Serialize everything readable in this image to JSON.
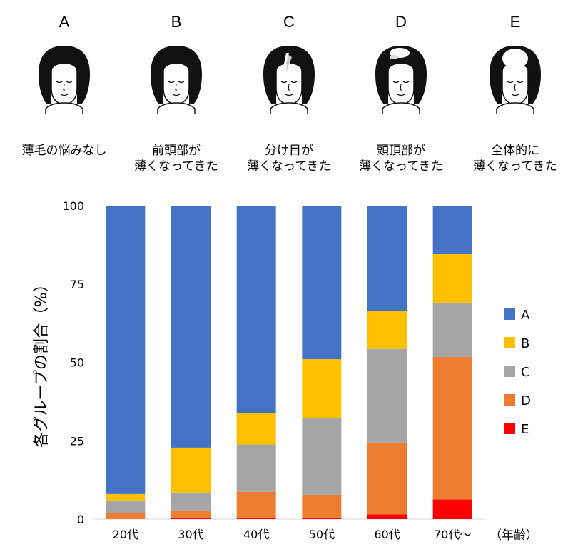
{
  "groups": [
    {
      "letter": "A",
      "caption": [
        "薄毛の悩みなし"
      ],
      "thinning": "none"
    },
    {
      "letter": "B",
      "caption": [
        "前頭部が",
        "薄くなってきた"
      ],
      "thinning": "front"
    },
    {
      "letter": "C",
      "caption": [
        "分け目が",
        "薄くなってきた"
      ],
      "thinning": "part"
    },
    {
      "letter": "D",
      "caption": [
        "頭頂部が",
        "薄くなってきた"
      ],
      "thinning": "crown"
    },
    {
      "letter": "E",
      "caption": [
        "全体的に",
        "薄くなってきた"
      ],
      "thinning": "overall"
    }
  ],
  "colors": {
    "A": "#4472C4",
    "B": "#FFC000",
    "C": "#A5A5A5",
    "D": "#ED7D31",
    "E": "#FF0000",
    "hair": "#111111"
  },
  "chart_data": {
    "type": "bar",
    "stacked": true,
    "categories": [
      "20代",
      "30代",
      "40代",
      "50代",
      "60代",
      "70代～"
    ],
    "series": [
      {
        "name": "E",
        "values": [
          0,
          0.5,
          0.3,
          0.5,
          1.5,
          6.3
        ]
      },
      {
        "name": "D",
        "values": [
          2,
          2.3,
          8.4,
          7.3,
          22.9,
          45.4
        ]
      },
      {
        "name": "C",
        "values": [
          4,
          5.7,
          15.1,
          24.5,
          29.9,
          17.1
        ]
      },
      {
        "name": "B",
        "values": [
          2,
          14.3,
          9.9,
          18.7,
          12.2,
          15.7
        ]
      },
      {
        "name": "A",
        "values": [
          92,
          77.2,
          66.3,
          49.0,
          33.5,
          15.5
        ]
      }
    ],
    "ylabel": "各グループの割合（%）",
    "xunit": "（年齢）",
    "ylim": [
      0,
      100
    ],
    "yticks": [
      0,
      25,
      50,
      75,
      100
    ],
    "legend_order": [
      "A",
      "B",
      "C",
      "D",
      "E"
    ],
    "legend_position": "right",
    "grid": false
  }
}
